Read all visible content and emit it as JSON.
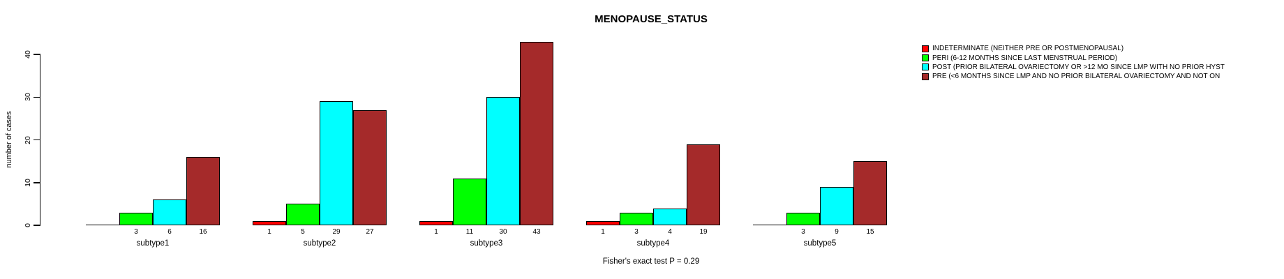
{
  "chart_data": {
    "type": "bar",
    "title": "MENOPAUSE_STATUS",
    "xlabel": "",
    "ylabel": "number of cases",
    "ylim": [
      0,
      40
    ],
    "yticks": [
      0,
      10,
      20,
      30,
      40
    ],
    "grid": false,
    "legend_position": "top-right",
    "categories": [
      "subtype1",
      "subtype2",
      "subtype3",
      "subtype4",
      "subtype5"
    ],
    "series": [
      {
        "name": "INDETERMINATE (NEITHER PRE OR POSTMENOPAUSAL)",
        "color": "#FF0000",
        "values": [
          0,
          1,
          1,
          1,
          0
        ]
      },
      {
        "name": "PERI (6-12 MONTHS SINCE LAST MENSTRUAL PERIOD)",
        "color": "#00FF00",
        "values": [
          3,
          5,
          11,
          3,
          3
        ]
      },
      {
        "name": "POST (PRIOR BILATERAL OVARIECTOMY OR >12 MO SINCE LMP WITH NO PRIOR HYST",
        "color": "#00FFFF",
        "values": [
          6,
          29,
          30,
          4,
          9
        ]
      },
      {
        "name": "PRE (<6 MONTHS SINCE LMP AND NO PRIOR BILATERAL OVARIECTOMY AND NOT ON",
        "color": "#A52A2A",
        "values": [
          16,
          27,
          43,
          19,
          15
        ]
      }
    ],
    "bar_value_labels_shown": "only non-zero values, printed under each bar",
    "annotation": "Fisher's exact test P = 0.29"
  },
  "legend": {
    "items": [
      {
        "label": "INDETERMINATE (NEITHER PRE OR POSTMENOPAUSAL)",
        "color": "#FF0000"
      },
      {
        "label": "PERI (6-12 MONTHS SINCE LAST MENSTRUAL PERIOD)",
        "color": "#00FF00"
      },
      {
        "label": "POST (PRIOR BILATERAL OVARIECTOMY OR >12 MO SINCE LMP WITH NO PRIOR HYST",
        "color": "#00FFFF"
      },
      {
        "label": "PRE (<6 MONTHS SINCE LMP AND NO PRIOR BILATERAL OVARIECTOMY AND NOT ON",
        "color": "#A52A2A"
      }
    ]
  },
  "colors": {
    "background": "#FFFFFF",
    "axis": "#000000",
    "text": "#000000"
  }
}
